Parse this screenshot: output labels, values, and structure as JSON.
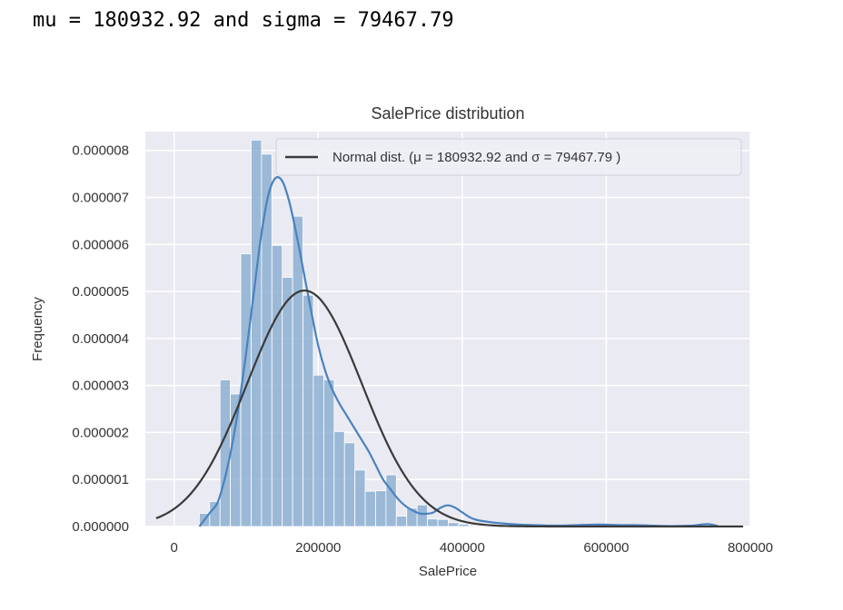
{
  "output": {
    "text": "mu = 180932.92 and sigma = 79467.79"
  },
  "chart_data": {
    "type": "bar",
    "title": "SalePrice distribution",
    "xlabel": "SalePrice",
    "ylabel": "Frequency",
    "xlim": [
      -40000,
      800000
    ],
    "ylim": [
      0,
      8.4e-06
    ],
    "xticks": [
      "0",
      "200000",
      "400000",
      "600000",
      "800000"
    ],
    "xtick_values": [
      0,
      200000,
      400000,
      600000,
      800000
    ],
    "yticks": [
      "0.000000",
      "0.000001",
      "0.000002",
      "0.000003",
      "0.000004",
      "0.000005",
      "0.000006",
      "0.000007",
      "0.000008"
    ],
    "ytick_values": [
      0,
      1e-06,
      2e-06,
      3e-06,
      4e-06,
      5e-06,
      6e-06,
      7e-06,
      8e-06
    ],
    "grid": true,
    "legend": {
      "placement": "top-right",
      "label": "Normal dist. (μ = 180932.92 and σ = 79467.79 )"
    },
    "colors": {
      "background": "#eaeaf2",
      "bars": "#8db0d2",
      "kde": "#4a82bd",
      "normal": "#3a3a3a"
    },
    "histogram": {
      "bin_start": 34900,
      "bin_width": 14400,
      "values": [
        2.8e-07,
        5.3e-07,
        3.12e-06,
        2.82e-06,
        5.8e-06,
        8.22e-06,
        7.92e-06,
        5.98e-06,
        5.3e-06,
        6.6e-06,
        4.92e-06,
        3.22e-06,
        3.12e-06,
        2.02e-06,
        1.78e-06,
        1.2e-06,
        7.5e-07,
        7.6e-07,
        1.1e-06,
        2.2e-07,
        3.9e-07,
        4.6e-07,
        1.6e-07,
        1.5e-07,
        8e-08,
        5e-08,
        2e-08,
        1e-08,
        2e-08,
        0,
        1e-08,
        1e-08,
        0,
        1e-08,
        2e-08,
        1e-08,
        0,
        0,
        0,
        0,
        0,
        0,
        0,
        0,
        0,
        0,
        0,
        0,
        1e-08,
        1e-08
      ]
    },
    "kde": {
      "x": [
        35000,
        50000,
        60000,
        70000,
        80000,
        90000,
        100000,
        110000,
        120000,
        130000,
        140000,
        150000,
        160000,
        170000,
        180000,
        190000,
        200000,
        210000,
        220000,
        230000,
        240000,
        250000,
        260000,
        270000,
        280000,
        290000,
        300000,
        310000,
        320000,
        330000,
        340000,
        350000,
        360000,
        370000,
        380000,
        390000,
        400000,
        410000,
        420000,
        440000,
        460000,
        480000,
        500000,
        520000,
        540000,
        560000,
        580000,
        600000,
        620000,
        640000,
        660000,
        680000,
        700000,
        720000,
        740000,
        755000
      ],
      "y": [
        0,
        3e-07,
        5e-07,
        1e-06,
        1.7e-06,
        2.6e-06,
        3.7e-06,
        4.9e-06,
        6.1e-06,
        7e-06,
        7.4e-06,
        7.35e-06,
        6.9e-06,
        6.2e-06,
        5.4e-06,
        4.6e-06,
        3.85e-06,
        3.3e-06,
        2.9e-06,
        2.6e-06,
        2.35e-06,
        2.1e-06,
        1.85e-06,
        1.6e-06,
        1.3e-06,
        1e-06,
        8e-07,
        6e-07,
        4.5e-07,
        3.5e-07,
        2.8e-07,
        2.7e-07,
        3e-07,
        4e-07,
        4.5e-07,
        4e-07,
        3e-07,
        2e-07,
        1.4e-07,
        9e-08,
        6e-08,
        4e-08,
        3e-08,
        2e-08,
        2e-08,
        3e-08,
        4e-08,
        4e-08,
        3e-08,
        3e-08,
        2e-08,
        1e-08,
        1e-08,
        2e-08,
        5e-08,
        1e-08
      ]
    },
    "normal": {
      "mu": 180932.92,
      "sigma": 79467.79,
      "x_range": [
        -25000,
        790000
      ]
    }
  }
}
